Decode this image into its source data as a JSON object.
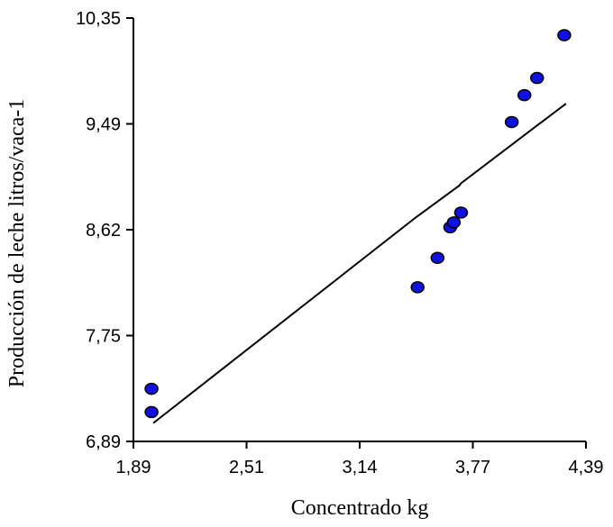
{
  "chart_data": {
    "type": "scatter",
    "title": "",
    "xlabel": "Concentrado kg",
    "ylabel": "Producción de leche litros/vaca-1",
    "xlim": [
      1.89,
      4.39
    ],
    "ylim": [
      6.89,
      10.35
    ],
    "x_ticks": [
      "1,89",
      "2,51",
      "3,14",
      "3,77",
      "4,39"
    ],
    "y_ticks": [
      "6,89",
      "7,75",
      "8,62",
      "9,49",
      "10,35"
    ],
    "grid": false,
    "legend": "none",
    "series": [
      {
        "points": [
          {
            "x": 1.99,
            "y": 7.32
          },
          {
            "x": 1.99,
            "y": 7.13
          },
          {
            "x": 3.46,
            "y": 8.15
          },
          {
            "x": 3.57,
            "y": 8.39
          },
          {
            "x": 3.64,
            "y": 8.64
          },
          {
            "x": 3.66,
            "y": 8.68
          },
          {
            "x": 3.7,
            "y": 8.76
          },
          {
            "x": 3.98,
            "y": 9.5
          },
          {
            "x": 4.05,
            "y": 9.72
          },
          {
            "x": 4.12,
            "y": 9.86
          },
          {
            "x": 4.27,
            "y": 10.21
          }
        ],
        "color": "#1010e0"
      }
    ],
    "fit_line": {
      "x": [
        2.0,
        3.45,
        3.69,
        3.7,
        4.1,
        4.28
      ],
      "y": [
        7.04,
        8.72,
        8.98,
        9.0,
        9.45,
        9.65
      ],
      "color": "#000000"
    }
  }
}
